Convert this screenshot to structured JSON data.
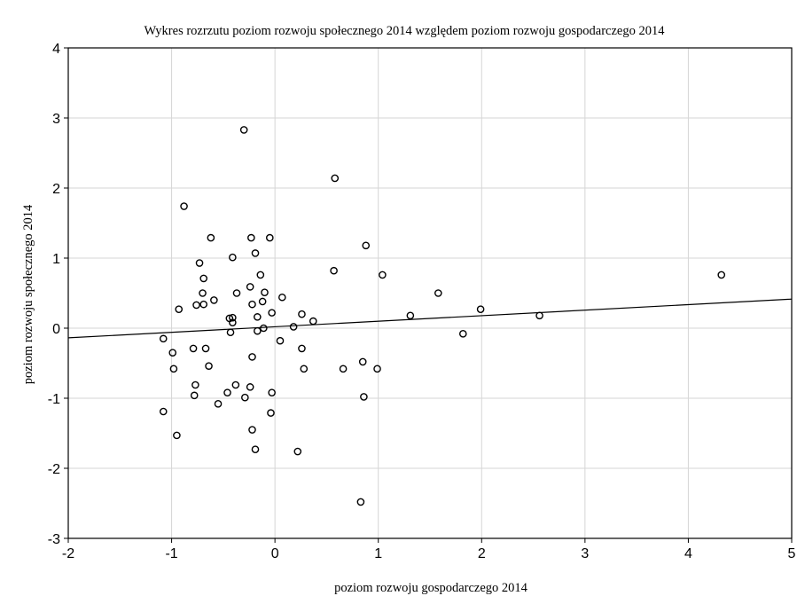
{
  "chart_data": {
    "type": "scatter",
    "title": "Wykres rozrzutu   poziom rozwoju społecznego 2014 względem poziom rozwoju gospodarczego 2014",
    "xlabel": "poziom rozwoju gospodarczego 2014",
    "ylabel": "poziom rozwoju społecznego 2014",
    "xlim": [
      -2,
      5
    ],
    "ylim": [
      -3,
      4
    ],
    "xticks": [
      -2,
      -1,
      0,
      1,
      2,
      3,
      4,
      5
    ],
    "yticks": [
      -3,
      -2,
      -1,
      0,
      1,
      2,
      3,
      4
    ],
    "grid": true,
    "marker": "circle-open",
    "points": [
      {
        "x": -0.3,
        "y": 2.83
      },
      {
        "x": 0.58,
        "y": 2.14
      },
      {
        "x": -0.88,
        "y": 1.74
      },
      {
        "x": -0.62,
        "y": 1.29
      },
      {
        "x": -0.23,
        "y": 1.29
      },
      {
        "x": -0.05,
        "y": 1.29
      },
      {
        "x": 0.88,
        "y": 1.18
      },
      {
        "x": -0.19,
        "y": 1.07
      },
      {
        "x": -0.41,
        "y": 1.01
      },
      {
        "x": -0.73,
        "y": 0.93
      },
      {
        "x": 0.57,
        "y": 0.82
      },
      {
        "x": -0.14,
        "y": 0.76
      },
      {
        "x": 1.04,
        "y": 0.76
      },
      {
        "x": 4.32,
        "y": 0.76
      },
      {
        "x": -0.69,
        "y": 0.71
      },
      {
        "x": -0.24,
        "y": 0.59
      },
      {
        "x": -0.37,
        "y": 0.5
      },
      {
        "x": -0.1,
        "y": 0.51
      },
      {
        "x": -0.7,
        "y": 0.5
      },
      {
        "x": 1.58,
        "y": 0.5
      },
      {
        "x": 0.07,
        "y": 0.44
      },
      {
        "x": -0.59,
        "y": 0.4
      },
      {
        "x": -0.12,
        "y": 0.38
      },
      {
        "x": -0.76,
        "y": 0.33
      },
      {
        "x": -0.69,
        "y": 0.34
      },
      {
        "x": -0.22,
        "y": 0.34
      },
      {
        "x": -0.93,
        "y": 0.27
      },
      {
        "x": 1.99,
        "y": 0.27
      },
      {
        "x": -0.03,
        "y": 0.22
      },
      {
        "x": 0.26,
        "y": 0.2
      },
      {
        "x": -0.17,
        "y": 0.16
      },
      {
        "x": -0.44,
        "y": 0.14
      },
      {
        "x": -0.41,
        "y": 0.15
      },
      {
        "x": 1.31,
        "y": 0.18
      },
      {
        "x": 2.56,
        "y": 0.18
      },
      {
        "x": 0.37,
        "y": 0.1
      },
      {
        "x": -0.41,
        "y": 0.08
      },
      {
        "x": 0.18,
        "y": 0.02
      },
      {
        "x": -0.11,
        "y": 0.0
      },
      {
        "x": -0.17,
        "y": -0.04
      },
      {
        "x": -0.43,
        "y": -0.06
      },
      {
        "x": 1.82,
        "y": -0.08
      },
      {
        "x": -1.08,
        "y": -0.15
      },
      {
        "x": 0.05,
        "y": -0.18
      },
      {
        "x": -0.79,
        "y": -0.29
      },
      {
        "x": -0.67,
        "y": -0.29
      },
      {
        "x": 0.26,
        "y": -0.29
      },
      {
        "x": -0.99,
        "y": -0.35
      },
      {
        "x": -0.22,
        "y": -0.41
      },
      {
        "x": 0.85,
        "y": -0.48
      },
      {
        "x": -0.64,
        "y": -0.54
      },
      {
        "x": -0.98,
        "y": -0.58
      },
      {
        "x": 0.28,
        "y": -0.58
      },
      {
        "x": 0.66,
        "y": -0.58
      },
      {
        "x": 0.99,
        "y": -0.58
      },
      {
        "x": -0.77,
        "y": -0.81
      },
      {
        "x": -0.38,
        "y": -0.81
      },
      {
        "x": -0.24,
        "y": -0.84
      },
      {
        "x": -0.46,
        "y": -0.92
      },
      {
        "x": -0.03,
        "y": -0.92
      },
      {
        "x": -0.78,
        "y": -0.96
      },
      {
        "x": -0.29,
        "y": -0.99
      },
      {
        "x": 0.86,
        "y": -0.98
      },
      {
        "x": -0.55,
        "y": -1.08
      },
      {
        "x": -1.08,
        "y": -1.19
      },
      {
        "x": -0.04,
        "y": -1.21
      },
      {
        "x": -0.22,
        "y": -1.45
      },
      {
        "x": -0.95,
        "y": -1.53
      },
      {
        "x": -0.19,
        "y": -1.73
      },
      {
        "x": 0.22,
        "y": -1.76
      },
      {
        "x": 0.83,
        "y": -2.48
      }
    ],
    "trendline": {
      "type": "linear",
      "intercept": 0.02,
      "slope": 0.079
    },
    "colors": {
      "points": "#000000",
      "line": "#000000",
      "grid": "#d6d6d6",
      "frame": "#000000"
    }
  }
}
